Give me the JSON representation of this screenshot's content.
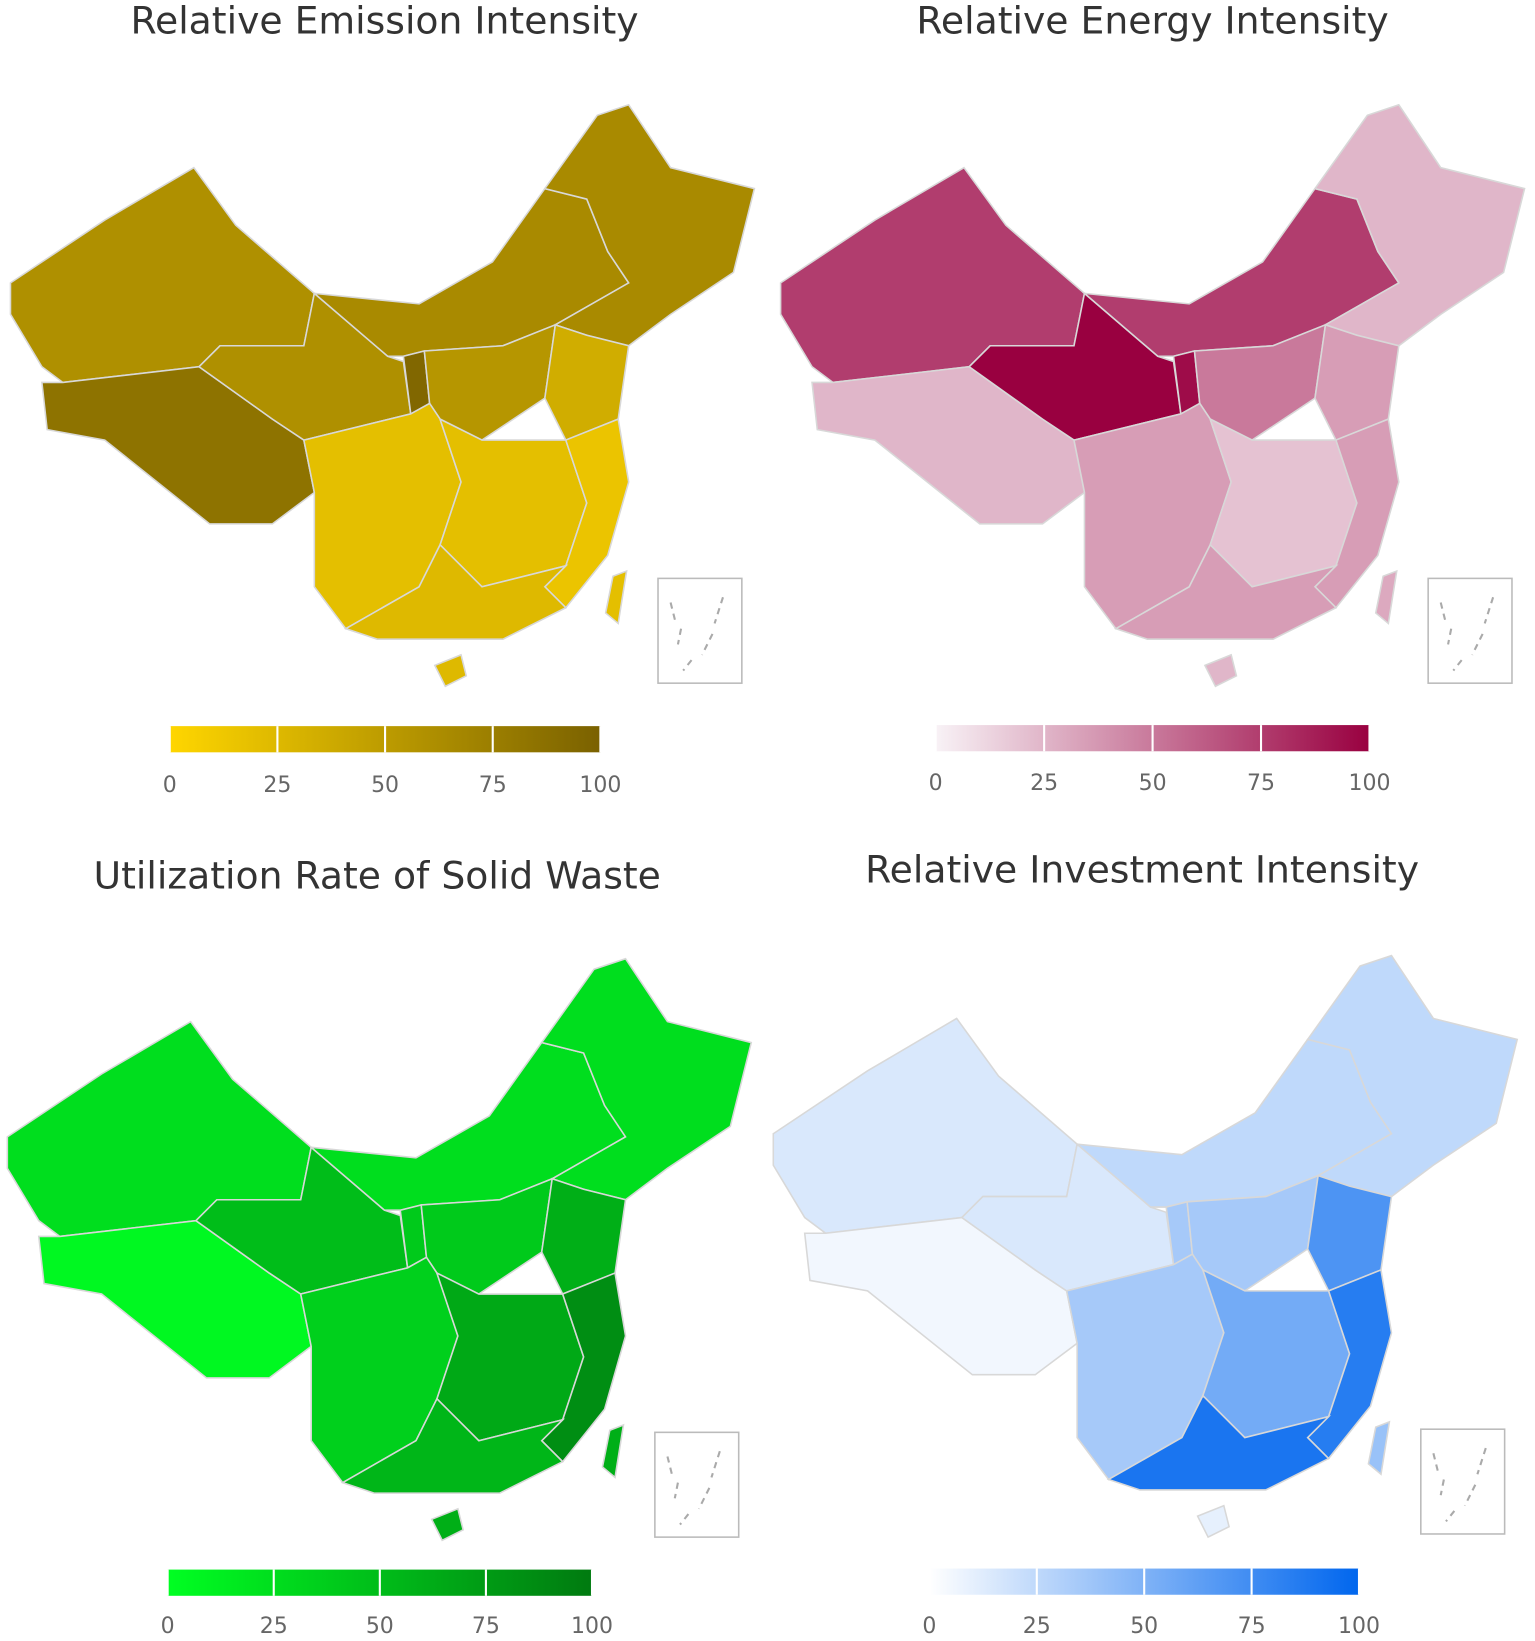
{
  "chart_data": [
    {
      "type": "choropleth",
      "title": "Relative Emission Intensity",
      "values": [
        60,
        85,
        60,
        65,
        65,
        95,
        55,
        35,
        20,
        20,
        15,
        25,
        25,
        20
      ],
      "colors": [
        "#ffd600",
        "#7a6100"
      ],
      "clim": [
        0,
        100
      ],
      "cticks": [
        0,
        25,
        50,
        75,
        100
      ]
    },
    {
      "type": "choropleth",
      "title": "Relative Energy Intensity",
      "values": [
        75,
        25,
        100,
        75,
        25,
        95,
        50,
        35,
        35,
        20,
        35,
        35,
        25,
        30
      ],
      "colors": [
        "#f8f2f6",
        "#990040"
      ],
      "clim": [
        0,
        100
      ],
      "cticks": [
        0,
        25,
        50,
        75,
        100
      ]
    },
    {
      "type": "choropleth",
      "title": "Utilization Rate of Solid Waste",
      "values": [
        25,
        5,
        50,
        25,
        25,
        40,
        40,
        60,
        35,
        65,
        85,
        55,
        60,
        60
      ],
      "colors": [
        "#00ff22",
        "#007a10"
      ],
      "clim": [
        0,
        100
      ],
      "cticks": [
        0,
        25,
        50,
        75,
        100
      ]
    },
    {
      "type": "choropleth",
      "title": "Relative Investment Intensity",
      "values": [
        15,
        5,
        15,
        25,
        25,
        35,
        35,
        70,
        35,
        55,
        85,
        90,
        10,
        40
      ],
      "colors": [
        "#ffffff",
        "#0066ee"
      ],
      "clim": [
        0,
        100
      ],
      "cticks": [
        0,
        25,
        50,
        75,
        100
      ]
    }
  ]
}
